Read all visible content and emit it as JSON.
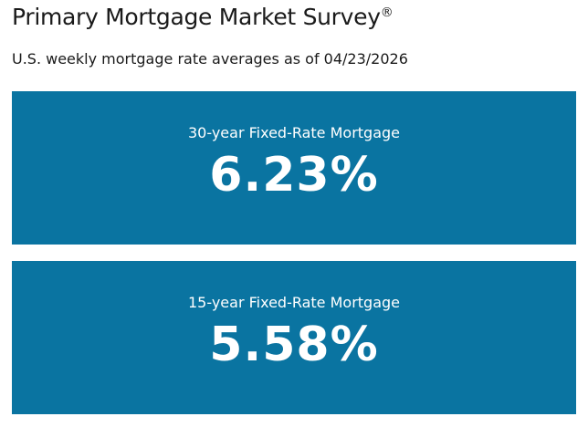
{
  "header": {
    "title": "Primary Mortgage Market Survey",
    "title_mark": "®",
    "subtitle": "U.S. weekly mortgage rate averages as of 04/23/2026"
  },
  "cards": [
    {
      "label": "30-year Fixed-Rate Mortgage",
      "value": "6.23%"
    },
    {
      "label": "15-year Fixed-Rate Mortgage",
      "value": "5.58%"
    }
  ]
}
